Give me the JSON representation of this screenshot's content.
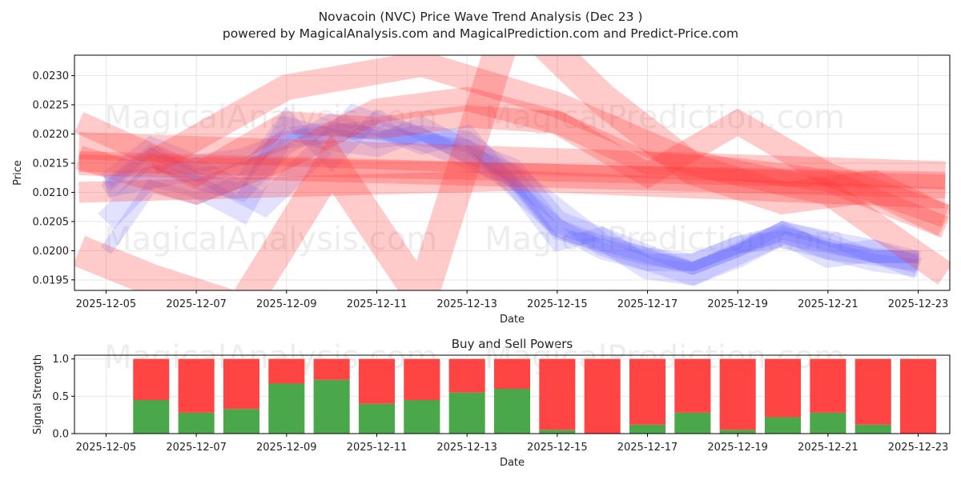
{
  "chart_data": [
    {
      "type": "line",
      "title": "Novacoin (NVC) Price Wave Trend Analysis (Dec 23 )",
      "subtitle": "powered by MagicalAnalysis.com and MagicalPrediction.com and Predict-Price.com",
      "xlabel": "Date",
      "ylabel": "Price",
      "x_tick_labels": [
        "2025-12-05",
        "2025-12-07",
        "2025-12-09",
        "2025-12-11",
        "2025-12-13",
        "2025-12-15",
        "2025-12-17",
        "2025-12-19",
        "2025-12-21",
        "2025-12-23"
      ],
      "y_tick_labels": [
        "0.0195",
        "0.0200",
        "0.0205",
        "0.0210",
        "0.0215",
        "0.0220",
        "0.0225",
        "0.0230"
      ],
      "xlim": [
        -0.7,
        18.7
      ],
      "ylim": [
        0.01932,
        0.02335
      ],
      "grid": true,
      "watermarks": [
        "MagicalAnalysis.com",
        "MagicalPrediction.com"
      ],
      "colors": {
        "price_band": "#4d4dff",
        "trend_band": "#ff3333"
      },
      "price_series": [
        {
          "name": "price band 1",
          "x": [
            0,
            1,
            2,
            3,
            4,
            5,
            6,
            7,
            8,
            9,
            10,
            11,
            12,
            13,
            14,
            15,
            16,
            17,
            18
          ],
          "y": [
            0.0211,
            0.0217,
            0.0213,
            0.0214,
            0.022,
            0.0221,
            0.022,
            0.0219,
            0.0218,
            0.0212,
            0.0203,
            0.0201,
            0.0199,
            0.0197,
            0.02,
            0.0203,
            0.0201,
            0.0199,
            0.0199
          ]
        },
        {
          "name": "price band 2",
          "x": [
            0,
            1,
            2,
            3,
            4,
            5,
            6,
            7,
            8,
            9,
            10,
            11,
            12,
            13,
            14,
            15,
            16,
            17,
            18
          ],
          "y": [
            0.021,
            0.0216,
            0.0212,
            0.021,
            0.0218,
            0.0222,
            0.0219,
            0.022,
            0.0219,
            0.0213,
            0.0204,
            0.02,
            0.0198,
            0.0198,
            0.0201,
            0.0202,
            0.02,
            0.0198,
            0.0197
          ]
        },
        {
          "name": "price band 3",
          "x": [
            0,
            1,
            2,
            3,
            4,
            5,
            6,
            7,
            8,
            9,
            10,
            11,
            12,
            13,
            14,
            15,
            16,
            17,
            18
          ],
          "y": [
            0.0205,
            0.0213,
            0.0211,
            0.0207,
            0.0221,
            0.0219,
            0.0218,
            0.0221,
            0.0217,
            0.0214,
            0.0205,
            0.0202,
            0.0197,
            0.0196,
            0.0199,
            0.0203,
            0.0199,
            0.02,
            0.0198
          ]
        },
        {
          "name": "price band 4",
          "x": [
            0,
            1,
            2,
            3,
            4,
            5,
            6,
            7,
            8,
            9,
            10,
            11,
            12,
            13,
            14,
            15,
            16,
            17,
            18
          ],
          "y": [
            0.02,
            0.0211,
            0.0209,
            0.0212,
            0.0223,
            0.0215,
            0.0223,
            0.022,
            0.0216,
            0.0211,
            0.0201,
            0.0203,
            0.02,
            0.0197,
            0.02,
            0.0204,
            0.0202,
            0.0199,
            0.0199
          ]
        },
        {
          "name": "price band 5",
          "x": [
            0,
            1,
            2,
            3,
            4,
            5,
            6,
            7,
            8,
            9,
            10,
            11,
            12,
            13,
            14,
            15,
            16,
            17,
            18
          ],
          "y": [
            0.0212,
            0.0218,
            0.0215,
            0.0216,
            0.0219,
            0.022,
            0.0221,
            0.0218,
            0.022,
            0.0211,
            0.0204,
            0.0201,
            0.0199,
            0.0198,
            0.0201,
            0.0203,
            0.02,
            0.0199,
            0.0198
          ]
        },
        {
          "name": "price band 6",
          "x": [
            0,
            2,
            3.5,
            5.5,
            7,
            9,
            11,
            13,
            15,
            17,
            18
          ],
          "y": [
            0.0211,
            0.0214,
            0.0208,
            0.0223,
            0.0219,
            0.0213,
            0.0201,
            0.0196,
            0.0203,
            0.02,
            0.0197
          ]
        }
      ],
      "trend_series": [
        {
          "name": "trend band 1",
          "x": [
            -0.6,
            18.6
          ],
          "y": [
            0.0215,
            0.0212
          ]
        },
        {
          "name": "trend band 2",
          "x": [
            -0.6,
            18.6
          ],
          "y": [
            0.0215,
            0.0211
          ]
        },
        {
          "name": "trend band 3",
          "x": [
            -0.6,
            18.6
          ],
          "y": [
            0.0218,
            0.0213
          ]
        },
        {
          "name": "trend band 4",
          "x": [
            -0.6,
            9,
            18.6
          ],
          "y": [
            0.021,
            0.0212,
            0.0209
          ]
        },
        {
          "name": "trend band 5",
          "x": [
            -0.6,
            2,
            4,
            6,
            8,
            10,
            12,
            14,
            16,
            18.6
          ],
          "y": [
            0.0222,
            0.0213,
            0.0222,
            0.0221,
            0.0223,
            0.0222,
            0.0215,
            0.0214,
            0.0212,
            0.0204
          ]
        },
        {
          "name": "trend band 6",
          "x": [
            -0.6,
            1,
            3,
            5,
            7,
            9,
            11,
            13,
            15,
            17,
            18.6
          ],
          "y": [
            0.02,
            0.0195,
            0.019,
            0.0215,
            0.0192,
            0.0241,
            0.0226,
            0.0214,
            0.0209,
            0.0211,
            0.0205
          ]
        },
        {
          "name": "trend band 7",
          "x": [
            -0.6,
            2,
            4,
            6,
            8,
            10,
            12,
            14,
            16,
            18.6
          ],
          "y": [
            0.0216,
            0.021,
            0.0216,
            0.0224,
            0.0226,
            0.0222,
            0.0213,
            0.0222,
            0.0213,
            0.0206
          ]
        },
        {
          "name": "trend band 8",
          "x": [
            1,
            4,
            7,
            10,
            13,
            16,
            18.6
          ],
          "y": [
            0.0215,
            0.0228,
            0.0232,
            0.0225,
            0.0215,
            0.021,
            0.0196
          ]
        }
      ]
    },
    {
      "type": "bar",
      "title": "Buy and Sell Powers",
      "xlabel": "Date",
      "ylabel": "Signal Strength",
      "x_tick_labels": [
        "2025-12-05",
        "2025-12-07",
        "2025-12-09",
        "2025-12-11",
        "2025-12-13",
        "2025-12-15",
        "2025-12-17",
        "2025-12-19",
        "2025-12-21",
        "2025-12-23"
      ],
      "y_tick_labels": [
        "0.0",
        "0.5",
        "1.0"
      ],
      "xlim": [
        -0.7,
        18.7
      ],
      "ylim": [
        0,
        1.05
      ],
      "grid": true,
      "watermarks": [
        "MagicalAnalysis.com",
        "MagicalPrediction.com"
      ],
      "colors": {
        "buy": "#4aa84a",
        "sell": "#ff4444"
      },
      "x": [
        1,
        2,
        3,
        4,
        5,
        6,
        7,
        8,
        9,
        10,
        11,
        12,
        13,
        14,
        15,
        16,
        17,
        18
      ],
      "buy": [
        0.45,
        0.28,
        0.33,
        0.67,
        0.72,
        0.4,
        0.45,
        0.55,
        0.6,
        0.05,
        0.0,
        0.12,
        0.28,
        0.05,
        0.22,
        0.28,
        0.12,
        0.0
      ],
      "sell": [
        0.55,
        0.72,
        0.67,
        0.33,
        0.28,
        0.6,
        0.55,
        0.45,
        0.4,
        0.95,
        1.0,
        0.88,
        0.72,
        0.95,
        0.78,
        0.72,
        0.88,
        1.0
      ]
    }
  ]
}
